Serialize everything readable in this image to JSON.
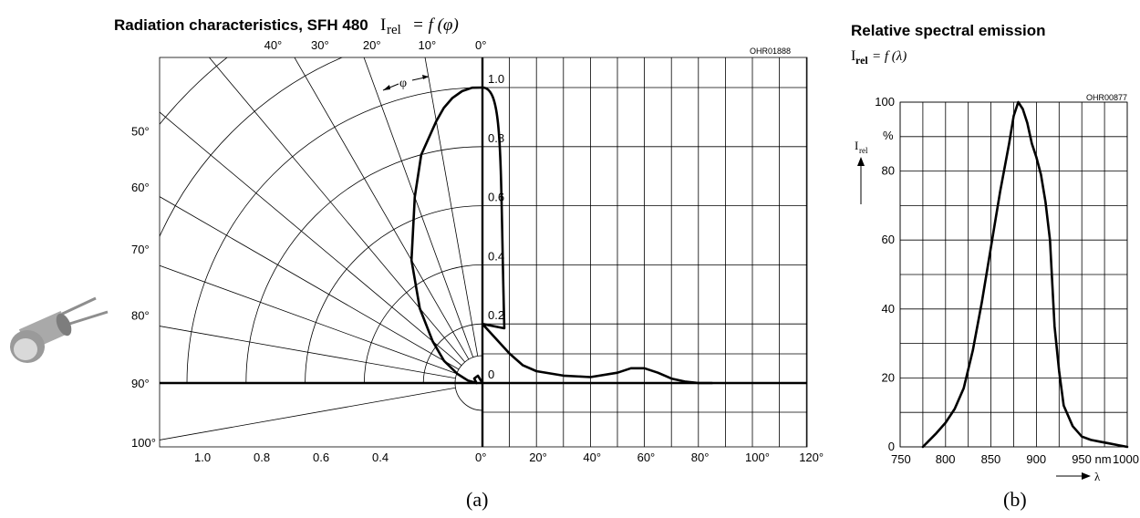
{
  "figure": {
    "caption_a": "(a)",
    "caption_b": "(b)",
    "photo": {
      "name": "sfh480-led-photo"
    }
  },
  "chart_data": [
    {
      "type": "line",
      "name": "radiation-characteristics",
      "title": "Radiation characteristics, SFH 480",
      "formula": {
        "symbol": "I",
        "sub": "rel",
        "expr": "= f (φ)"
      },
      "code": "OHR01888",
      "angle_symbol": "φ",
      "polar_radius_ticks": [
        "1.0",
        "0.8",
        "0.6",
        "0.4",
        "0.2",
        "0"
      ],
      "bottom_radius_ticks": [
        "1.0",
        "0.8",
        "0.6",
        "0.4"
      ],
      "polar_angle_ticks_top": [
        "40°",
        "30°",
        "20°",
        "10°",
        "0°"
      ],
      "polar_angle_ticks_left": [
        "50°",
        "60°",
        "70°",
        "80°",
        "90°",
        "100°"
      ],
      "x_ticks": [
        "0°",
        "20°",
        "40°",
        "60°",
        "80°",
        "100°",
        "120°"
      ],
      "ylim": [
        0,
        1.0
      ],
      "xlim": [
        0,
        120
      ],
      "grid": true,
      "series": [
        {
          "x": [
            0,
            8,
            10,
            15,
            20,
            30,
            40,
            50,
            55,
            60,
            65,
            70,
            75,
            80,
            85
          ],
          "y": [
            0.2,
            0.12,
            0.1,
            0.06,
            0.04,
            0.025,
            0.02,
            0.035,
            0.05,
            0.05,
            0.035,
            0.015,
            0.005,
            0,
            0
          ]
        }
      ],
      "polar_series": [
        {
          "angle": [
            0,
            2,
            4,
            6,
            8,
            10,
            15,
            20,
            30,
            40,
            50,
            60,
            70,
            80,
            90
          ],
          "value": [
            1.0,
            1.0,
            0.99,
            0.97,
            0.94,
            0.9,
            0.8,
            0.67,
            0.48,
            0.33,
            0.22,
            0.15,
            0.09,
            0.05,
            0.02
          ]
        }
      ]
    },
    {
      "type": "line",
      "name": "relative-spectral-emission",
      "title": "Relative spectral emission",
      "formula": {
        "symbol": "I",
        "sub": "rel",
        "expr": "= f (λ)"
      },
      "code": "OHR00877",
      "ylabel": {
        "symbol": "I",
        "sub": "rel"
      },
      "y_unit": "%",
      "xlabel": "λ",
      "x_unit": "nm",
      "x": [
        775,
        790,
        800,
        810,
        820,
        830,
        840,
        850,
        860,
        870,
        875,
        880,
        885,
        890,
        895,
        900,
        905,
        910,
        915,
        920,
        925,
        930,
        940,
        950,
        960,
        970,
        980,
        990,
        1000
      ],
      "y": [
        0,
        4,
        7,
        11,
        17,
        28,
        42,
        58,
        74,
        88,
        96,
        100,
        98,
        94,
        88,
        84,
        79,
        71,
        60,
        35,
        22,
        12,
        6,
        3,
        2,
        1.5,
        1,
        0.5,
        0
      ],
      "x_ticks": [
        750,
        800,
        850,
        900,
        950,
        1000
      ],
      "x_tick_labels": [
        "750",
        "800",
        "850",
        "900",
        "950 nm",
        "1000"
      ],
      "y_ticks": [
        0,
        20,
        40,
        60,
        80,
        100
      ],
      "xlim": [
        750,
        1000
      ],
      "ylim": [
        0,
        100
      ],
      "grid": true
    }
  ]
}
